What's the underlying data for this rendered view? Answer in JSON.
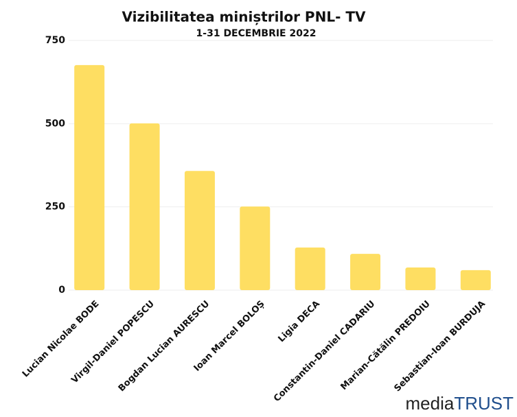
{
  "chart_data": {
    "type": "bar",
    "title": "Vizibilitatea miniștrilor PNL- TV",
    "subtitle": "1-31 DECEMBRIE 2022",
    "categories": [
      "Lucian Nicolae BODE",
      "Virgil-Daniel POPESCU",
      "Bogdan Lucian AURESCU",
      "Ioan Marcel BOLOȘ",
      "Ligia DECA",
      "Constantin-Daniel CADARIU",
      "Marian-Cătălin PREDOIU",
      "Sebastian-Ioan BURDUJA"
    ],
    "values": [
      676,
      501,
      358,
      251,
      128,
      109,
      68,
      60
    ],
    "color": "#fede62",
    "ylim": [
      0,
      750
    ],
    "yticks": [
      0,
      250,
      500,
      750
    ],
    "grid": true
  },
  "logo": {
    "dark": "media",
    "accent": "TRUST"
  }
}
